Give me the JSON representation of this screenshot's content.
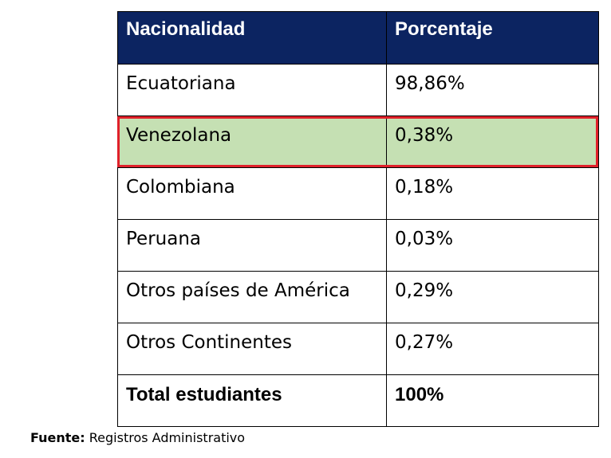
{
  "table": {
    "headers": [
      "Nacionalidad",
      "Porcentaje"
    ],
    "rows": [
      {
        "nationality": "Ecuatoriana",
        "percentage": "98,86%"
      },
      {
        "nationality": "Venezolana",
        "percentage": "0,38%"
      },
      {
        "nationality": "Colombiana",
        "percentage": "0,18%"
      },
      {
        "nationality": "Peruana",
        "percentage": "0,03%"
      },
      {
        "nationality": "Otros países de América",
        "percentage": "0,29%"
      },
      {
        "nationality": "Otros Continentes",
        "percentage": "0,27%"
      }
    ],
    "total": {
      "label": "Total estudiantes",
      "value": "100%"
    },
    "highlighted_row": "Venezolana"
  },
  "footnote": {
    "label": "Fuente:",
    "text": " Registros Administrativo"
  },
  "colors": {
    "header_bg": "#0c2461",
    "header_text": "#ffffff",
    "highlight_fill": "#c5e0b3",
    "highlight_border": "#e0202a"
  }
}
